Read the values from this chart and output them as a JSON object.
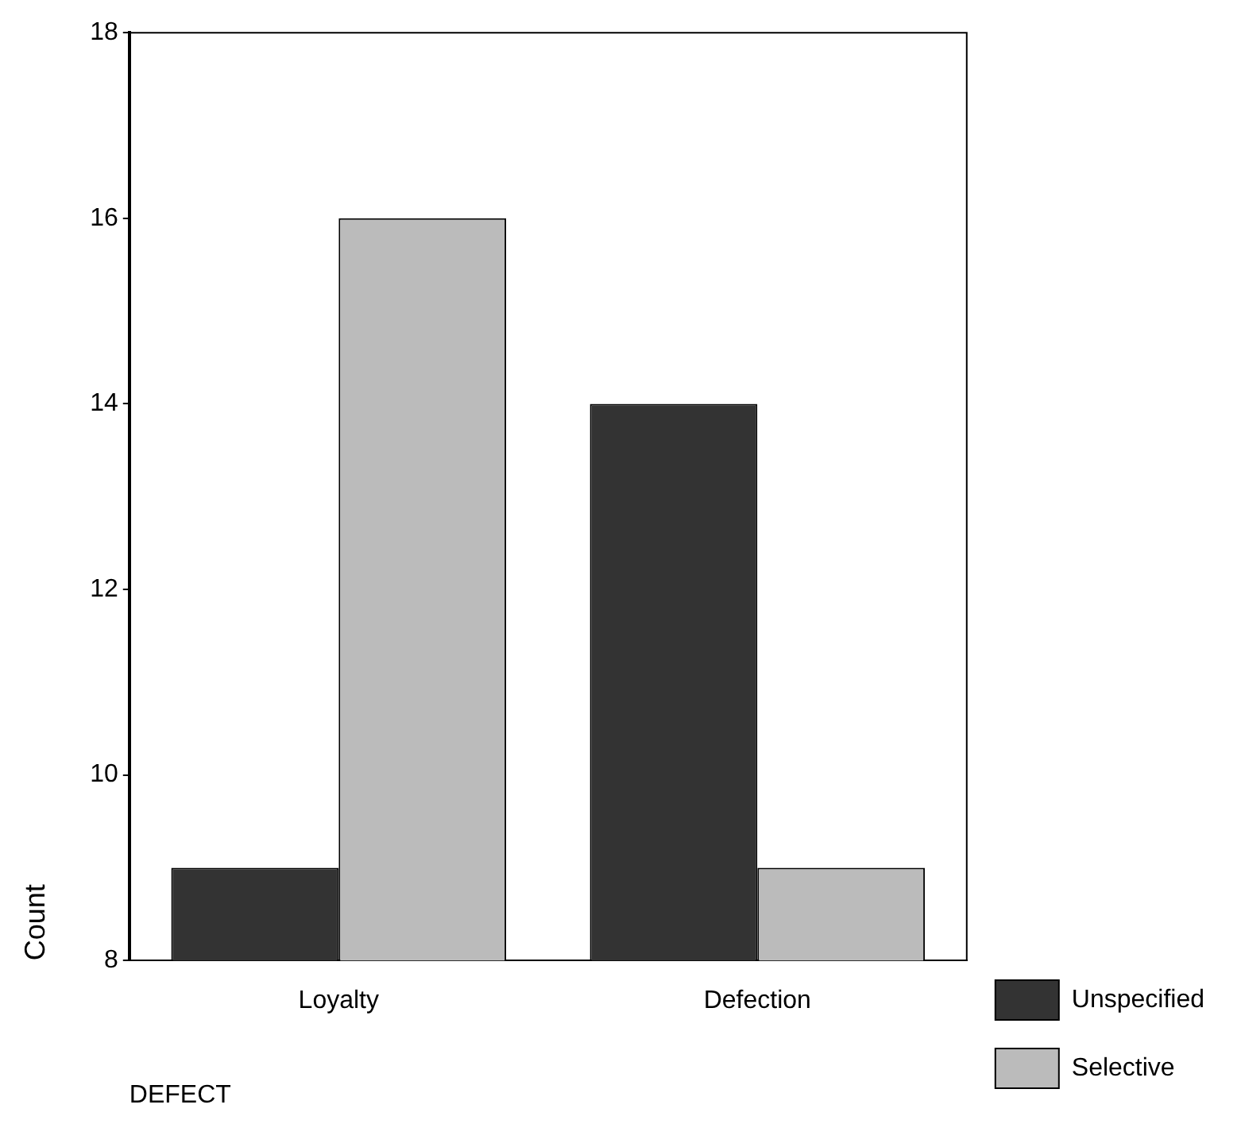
{
  "chart_data": {
    "type": "bar",
    "xlabel": "DEFECT",
    "ylabel": "Count",
    "categories": [
      "Loyalty",
      "Defection"
    ],
    "series": [
      {
        "name": "Unspecified",
        "color": "#333333",
        "values": [
          9,
          14
        ]
      },
      {
        "name": "Selective",
        "color": "#bbbbbb",
        "values": [
          16,
          9
        ]
      }
    ],
    "ylim": [
      8,
      18
    ],
    "yticks": [
      8,
      10,
      12,
      14,
      16,
      18
    ],
    "legend": "right bottom"
  }
}
